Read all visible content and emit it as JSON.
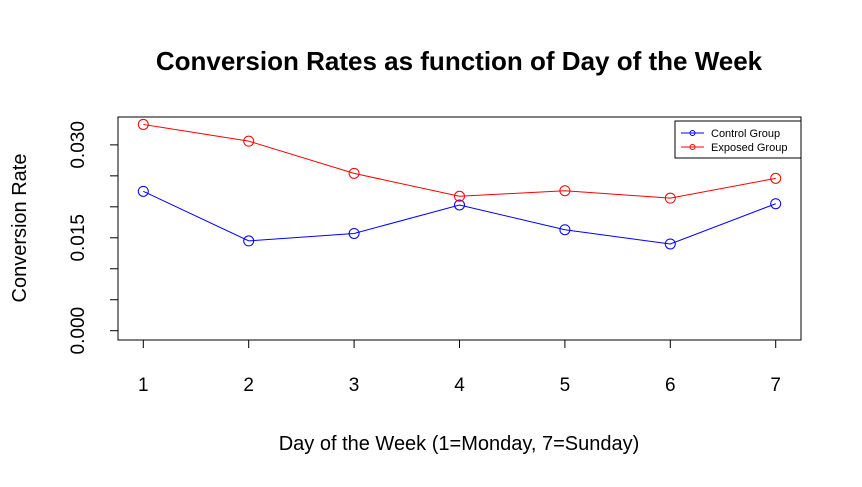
{
  "chart_data": {
    "type": "line",
    "title": "Conversion Rates as function of Day of the Week",
    "xlabel": "Day of the Week (1=Monday, 7=Sunday)",
    "ylabel": "Conversion Rate",
    "x": [
      1,
      2,
      3,
      4,
      5,
      6,
      7
    ],
    "xlim": [
      0.76,
      7.24
    ],
    "ylim": [
      -0.0015,
      0.0345
    ],
    "x_ticks": [
      1,
      2,
      3,
      4,
      5,
      6,
      7
    ],
    "y_ticks": [
      0.0,
      0.005,
      0.01,
      0.015,
      0.02,
      0.025,
      0.03
    ],
    "y_tick_labels": [
      "0.000",
      "",
      "",
      "0.015",
      "",
      "",
      "0.030"
    ],
    "grid": false,
    "legend_position": "top-right",
    "series": [
      {
        "name": "Control Group",
        "color": "#0000ff",
        "values": [
          0.0225,
          0.0145,
          0.0157,
          0.0203,
          0.0163,
          0.014,
          0.0205
        ]
      },
      {
        "name": "Exposed Group",
        "color": "#ff0000",
        "values": [
          0.0333,
          0.0306,
          0.0254,
          0.0217,
          0.0226,
          0.0214,
          0.0246
        ]
      }
    ]
  }
}
